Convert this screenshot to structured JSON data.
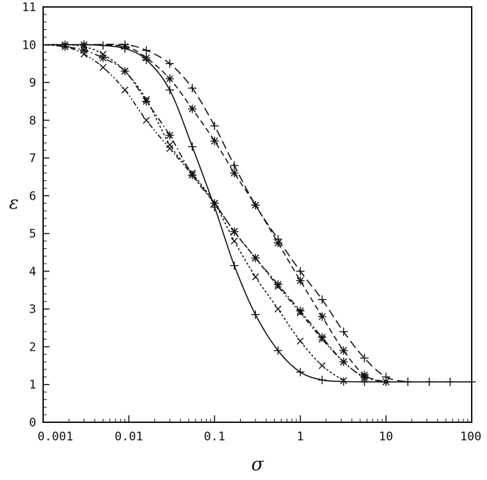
{
  "chart_data": {
    "type": "line",
    "title": "",
    "xlabel": "σ",
    "ylabel": "ε",
    "x_scale": "log",
    "xlim": [
      0.001,
      100
    ],
    "ylim": [
      0,
      11
    ],
    "x_tick_labels": [
      "0.001",
      "0.01",
      "0.1",
      "1",
      "10",
      "100"
    ],
    "y_tick_labels": [
      "0",
      "1",
      "2",
      "3",
      "4",
      "5",
      "6",
      "7",
      "8",
      "9",
      "10",
      "11"
    ],
    "grid": false,
    "legend": "none",
    "series": [
      {
        "style": "solid",
        "marker": "+",
        "x": [
          0.001,
          0.0018,
          0.003,
          0.005,
          0.009,
          0.016,
          0.03,
          0.055,
          0.1,
          0.17,
          0.3,
          0.55,
          1.0,
          1.8,
          3.2,
          5.6,
          10,
          18,
          32,
          56,
          100
        ],
        "y": [
          10.0,
          10.0,
          10.0,
          9.98,
          9.9,
          9.6,
          8.8,
          7.3,
          5.7,
          4.15,
          2.85,
          1.9,
          1.33,
          1.12,
          1.08,
          1.07,
          1.07,
          1.07,
          1.07,
          1.07,
          1.07
        ]
      },
      {
        "style": "long-dash",
        "marker": "+",
        "x": [
          0.001,
          0.003,
          0.009,
          0.016,
          0.03,
          0.055,
          0.1,
          0.17,
          0.3,
          0.55,
          1.0,
          1.8,
          3.2,
          5.6,
          10,
          18
        ],
        "y": [
          10.0,
          10.0,
          10.0,
          9.85,
          9.5,
          8.85,
          7.85,
          6.8,
          5.75,
          4.85,
          4.0,
          3.25,
          2.4,
          1.7,
          1.2,
          1.07
        ]
      },
      {
        "style": "dash",
        "marker": "*",
        "x": [
          0.001,
          0.003,
          0.009,
          0.016,
          0.03,
          0.055,
          0.1,
          0.17,
          0.3,
          0.55,
          1.0,
          1.8,
          3.2,
          5.6,
          10
        ],
        "y": [
          10.0,
          10.0,
          9.95,
          9.65,
          9.1,
          8.3,
          7.45,
          6.6,
          5.75,
          4.75,
          3.75,
          2.8,
          1.9,
          1.25,
          1.07
        ]
      },
      {
        "style": "dash-dot",
        "marker": "*",
        "x": [
          0.001,
          0.0018,
          0.003,
          0.005,
          0.009,
          0.016,
          0.03,
          0.055,
          0.1,
          0.17,
          0.3,
          0.55,
          1.0,
          1.8,
          3.2,
          5.6,
          10
        ],
        "y": [
          10.0,
          9.95,
          9.85,
          9.65,
          9.3,
          8.5,
          7.6,
          6.55,
          5.8,
          5.05,
          4.35,
          3.65,
          2.95,
          2.25,
          1.6,
          1.2,
          1.07
        ]
      },
      {
        "style": "dotted",
        "marker": "x",
        "x": [
          0.001,
          0.0018,
          0.003,
          0.005,
          0.009,
          0.016,
          0.03,
          0.055,
          0.1,
          0.17,
          0.3,
          0.55,
          1.0,
          1.8,
          3.2
        ],
        "y": [
          10.0,
          10.0,
          9.95,
          9.75,
          9.3,
          8.55,
          7.35,
          6.6,
          5.8,
          4.8,
          3.85,
          3.0,
          2.15,
          1.5,
          1.1
        ]
      },
      {
        "style": "dash-dot-dot",
        "marker": "x",
        "x": [
          0.001,
          0.0018,
          0.003,
          0.005,
          0.009,
          0.016,
          0.03,
          0.055,
          0.1,
          0.17,
          0.3,
          0.55,
          1.0,
          1.8,
          3.2,
          5.6
        ],
        "y": [
          10.0,
          9.95,
          9.75,
          9.4,
          8.8,
          8.0,
          7.25,
          6.55,
          5.8,
          5.05,
          4.35,
          3.6,
          2.9,
          2.2,
          1.6,
          1.15
        ]
      }
    ]
  }
}
